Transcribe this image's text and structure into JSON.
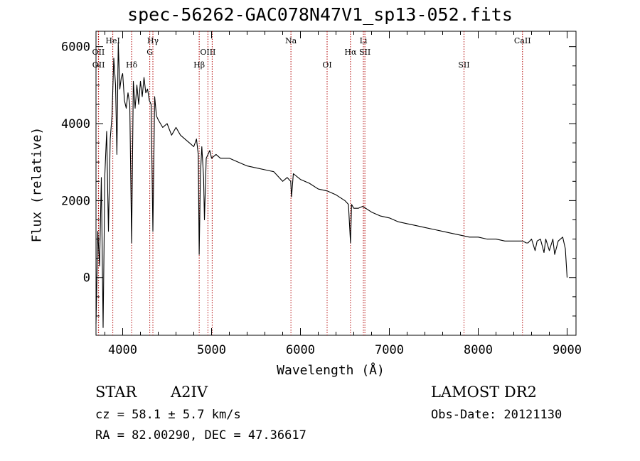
{
  "title": "spec-56262-GAC078N47V1_sp13-052.fits",
  "footer": {
    "object_class": "STAR",
    "subclass": "A2IV",
    "cz": "cz = 58.1 ± 5.7 km/s",
    "radec": "RA =  82.00290, DEC =  47.36617",
    "survey": "LAMOST DR2",
    "obs_date": "Obs-Date: 20121130"
  },
  "chart_data": {
    "type": "line",
    "title": "spec-56262-GAC078N47V1_sp13-052.fits",
    "xlabel": "Wavelength (Å)",
    "ylabel": "Flux (relative)",
    "xlim": [
      3700,
      9100
    ],
    "ylim": [
      -1500,
      6400
    ],
    "xticks": [
      "4000",
      "5000",
      "6000",
      "7000",
      "8000",
      "9000"
    ],
    "yticks": [
      "0",
      "2000",
      "4000",
      "6000"
    ],
    "x": [
      3700,
      3720,
      3740,
      3760,
      3780,
      3800,
      3820,
      3840,
      3860,
      3880,
      3900,
      3920,
      3935,
      3950,
      3968,
      3985,
      4000,
      4020,
      4040,
      4060,
      4080,
      4101,
      4120,
      4140,
      4160,
      4180,
      4200,
      4220,
      4240,
      4260,
      4280,
      4300,
      4320,
      4340,
      4360,
      4380,
      4400,
      4450,
      4500,
      4550,
      4600,
      4650,
      4700,
      4750,
      4800,
      4830,
      4850,
      4861,
      4875,
      4890,
      4910,
      4920,
      4940,
      4960,
      4980,
      5000,
      5050,
      5100,
      5200,
      5300,
      5400,
      5500,
      5600,
      5700,
      5800,
      5850,
      5890,
      5900,
      5920,
      6000,
      6100,
      6200,
      6300,
      6400,
      6500,
      6540,
      6563,
      6575,
      6600,
      6650,
      6700,
      6800,
      6900,
      7000,
      7100,
      7200,
      7300,
      7400,
      7500,
      7600,
      7700,
      7800,
      7900,
      8000,
      8100,
      8200,
      8300,
      8400,
      8500,
      8540,
      8560,
      8600,
      8640,
      8662,
      8700,
      8740,
      8760,
      8800,
      8840,
      8860,
      8900,
      8950,
      8980,
      9000
    ],
    "values": [
      -1200,
      1200,
      300,
      2600,
      -1300,
      2700,
      3800,
      1200,
      3600,
      4200,
      5700,
      5000,
      3200,
      6100,
      4900,
      5200,
      5300,
      4600,
      4400,
      4800,
      4500,
      900,
      5100,
      4400,
      5000,
      4500,
      5100,
      4700,
      5200,
      4800,
      4900,
      4600,
      4500,
      1200,
      4700,
      4200,
      4100,
      3900,
      4000,
      3700,
      3900,
      3700,
      3600,
      3500,
      3400,
      3600,
      3200,
      600,
      2700,
      3400,
      2600,
      1500,
      3100,
      3200,
      3300,
      3100,
      3200,
      3100,
      3100,
      3000,
      2900,
      2850,
      2800,
      2750,
      2500,
      2600,
      2500,
      2100,
      2700,
      2550,
      2450,
      2300,
      2250,
      2150,
      2000,
      1900,
      900,
      1900,
      1800,
      1800,
      1850,
      1700,
      1600,
      1550,
      1450,
      1400,
      1350,
      1300,
      1250,
      1200,
      1150,
      1100,
      1050,
      1050,
      1000,
      1000,
      950,
      950,
      950,
      900,
      900,
      1000,
      700,
      950,
      1000,
      650,
      1000,
      700,
      1000,
      600,
      950,
      1050,
      750,
      0
    ],
    "lines": [
      {
        "label": "OII",
        "x": 3727,
        "row": 1
      },
      {
        "label": "OII",
        "x": 3729,
        "row": 2
      },
      {
        "label": "HeI",
        "x": 3889,
        "row": 0
      },
      {
        "label": "Hδ",
        "x": 4101,
        "row": 2
      },
      {
        "label": "Hγ",
        "x": 4340,
        "row": 0
      },
      {
        "label": "G",
        "x": 4305,
        "row": 1
      },
      {
        "label": "Hβ",
        "x": 4861,
        "row": 2
      },
      {
        "label": "OIII",
        "x": 4959,
        "row": 1
      },
      {
        "label": "OIII",
        "x": 5007,
        "row": -1
      },
      {
        "label": "Na",
        "x": 5893,
        "row": 0
      },
      {
        "label": "OI",
        "x": 6300,
        "row": 2
      },
      {
        "label": "Hα",
        "x": 6563,
        "row": 1
      },
      {
        "label": "Li",
        "x": 6708,
        "row": 0
      },
      {
        "label": "SII",
        "x": 6725,
        "row": 1
      },
      {
        "label": "SII",
        "x": 7840,
        "row": 2
      },
      {
        "label": "CaII",
        "x": 8498,
        "row": 0
      }
    ],
    "grid": false,
    "legend": "none"
  }
}
